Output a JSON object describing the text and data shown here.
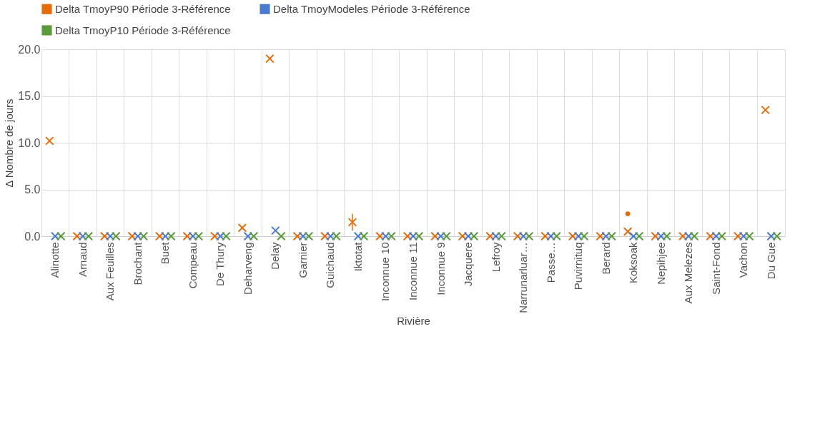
{
  "chart_data": {
    "type": "scatter",
    "xlabel": "Rivière",
    "ylabel": "Δ Nombre de jours",
    "categories": [
      "Alinotte",
      "Arnaud",
      "Aux Feuilles",
      "Brochant",
      "Buet",
      "Compeau",
      "De Thury",
      "Deharveng",
      "Delay",
      "Garnier",
      "Guichaud",
      "Iktotat",
      "Inconnue 10",
      "Inconnue 11",
      "Inconnue 9",
      "Jacquere",
      "Lefroy",
      "Narrunarluar…",
      "Passe…",
      "Puvirnituq",
      "Berard",
      "Koksoak",
      "Nepihjee",
      "Aux Melezes",
      "Saint-Fond",
      "Vachon",
      "Du Gue"
    ],
    "series": [
      {
        "name": "Delta TmoyP90 Période 3-Référence",
        "color": "#e46c0a",
        "marker": "cross",
        "values": [
          10.2,
          0,
          0,
          0,
          0,
          0,
          0,
          0.9,
          19.0,
          0,
          0,
          1.5,
          0,
          0,
          0,
          0,
          0,
          0,
          0,
          0,
          0,
          0.5,
          0,
          0,
          0,
          0,
          13.5
        ],
        "errors": [
          null,
          null,
          null,
          null,
          null,
          null,
          null,
          null,
          null,
          null,
          null,
          [
            0.6,
            2.4
          ],
          null,
          null,
          null,
          null,
          null,
          null,
          null,
          null,
          null,
          null,
          null,
          null,
          null,
          null,
          null
        ]
      },
      {
        "name": "Delta TmoyModeles Période 3-Référence",
        "color": "#4a7bd0",
        "marker": "cross",
        "values": [
          0,
          0,
          0,
          0,
          0,
          0,
          0,
          0,
          0.6,
          0,
          0,
          0,
          0,
          0,
          0,
          0,
          0,
          0,
          0,
          0,
          0,
          0,
          0,
          0,
          0,
          0,
          0
        ]
      },
      {
        "name": "Delta TmoyP10 Période 3-Référence",
        "color": "#5a9a3a",
        "marker": "cross",
        "values": [
          0,
          0,
          0,
          0,
          0,
          0,
          0,
          0,
          0,
          0,
          0,
          0,
          0,
          0,
          0,
          0,
          0,
          0,
          0,
          0,
          0,
          0,
          0,
          0,
          0,
          0,
          0
        ]
      },
      {
        "color": "#e46c0a",
        "marker": "circle",
        "values": [
          null,
          null,
          null,
          null,
          null,
          null,
          null,
          null,
          null,
          null,
          null,
          null,
          null,
          null,
          null,
          null,
          null,
          null,
          null,
          null,
          null,
          2.4,
          null,
          null,
          null,
          null,
          null
        ]
      }
    ],
    "ylim": [
      0,
      20
    ],
    "yticks": [
      {
        "value": 0,
        "label": "0.0"
      },
      {
        "value": 5,
        "label": "5.0"
      },
      {
        "value": 10,
        "label": "10.0"
      },
      {
        "value": 15,
        "label": "15.0"
      },
      {
        "value": 20,
        "label": "20.0"
      }
    ],
    "grid": true,
    "legend": "top"
  }
}
